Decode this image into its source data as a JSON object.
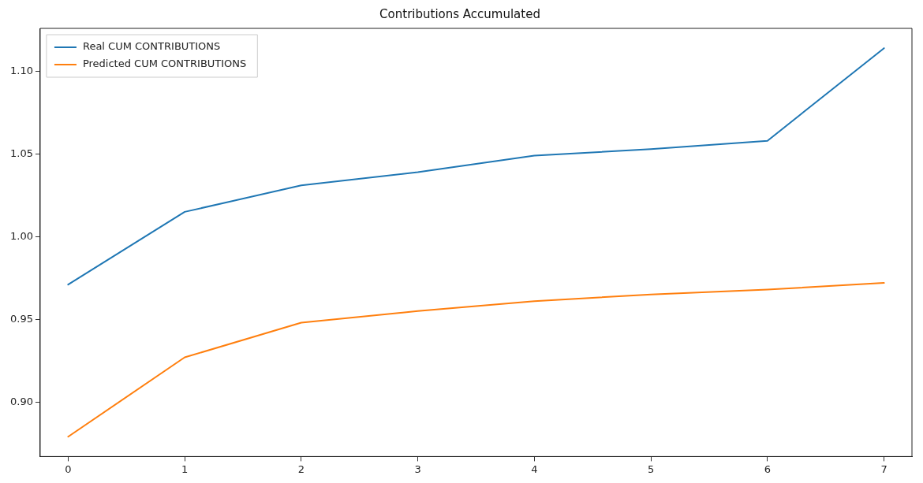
{
  "chart_data": {
    "type": "line",
    "title": "Contributions Accumulated",
    "x": [
      0,
      1,
      2,
      3,
      4,
      5,
      6,
      7
    ],
    "series": [
      {
        "name": "Real CUM CONTRIBUTIONS",
        "color": "#1f77b4",
        "values": [
          0.971,
          1.015,
          1.031,
          1.039,
          1.049,
          1.053,
          1.058,
          1.114
        ]
      },
      {
        "name": "Predicted CUM CONTRIBUTIONS",
        "color": "#ff7f0e",
        "values": [
          0.879,
          0.927,
          0.948,
          0.955,
          0.961,
          0.965,
          0.968,
          0.972
        ]
      }
    ],
    "xlim": [
      -0.24,
      7.24
    ],
    "xticks": [
      0,
      1,
      2,
      3,
      4,
      5,
      6,
      7
    ],
    "ylim": [
      0.867,
      1.126
    ],
    "yticks": [
      {
        "value": 0.9,
        "label": "0.90"
      },
      {
        "value": 0.95,
        "label": "0.95"
      },
      {
        "value": 1.0,
        "label": "1.00"
      },
      {
        "value": 1.05,
        "label": "1.05"
      },
      {
        "value": 1.1,
        "label": "1.10"
      }
    ],
    "grid": false,
    "legend": "top left",
    "marker": "none",
    "line_style": "solid"
  }
}
